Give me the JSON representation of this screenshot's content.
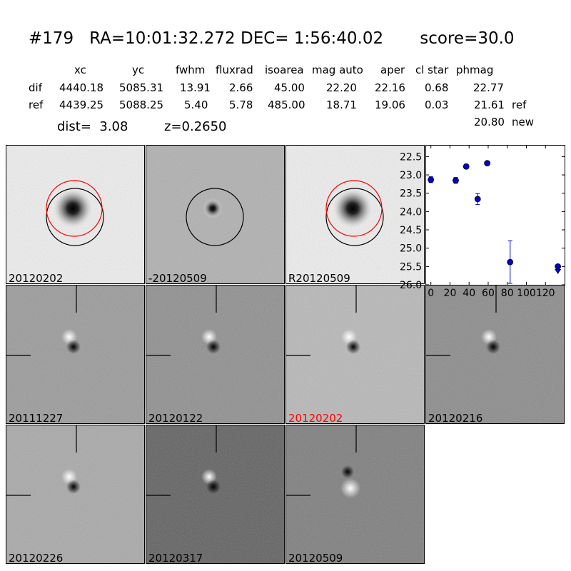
{
  "header": {
    "title": "#179   RA=10:01:32.272 DEC= 1:56:40.02       score=30.0",
    "columns": [
      "xc",
      "yc",
      "fwhm",
      "fluxrad",
      "isoarea",
      "mag auto",
      "aper",
      "cl star",
      "phmag"
    ],
    "rows": [
      {
        "label": "dif",
        "values": [
          "4440.18",
          "5085.31",
          "13.91",
          "2.66",
          "45.00",
          "22.20",
          "22.16",
          "0.68",
          "22.77"
        ],
        "extra": ""
      },
      {
        "label": "ref",
        "values": [
          "4439.25",
          "5088.25",
          "5.40",
          "5.78",
          "485.00",
          "18.71",
          "19.06",
          "0.03",
          "21.61"
        ],
        "extra": "ref"
      }
    ],
    "new_phmag": "20.80",
    "new_label": "new",
    "dist": "dist=  3.08",
    "z": "z=0.2650"
  },
  "panels": [
    {
      "label": "20120202",
      "label_color": "#000000",
      "bg": "#f0f0f0",
      "kind": "galaxy",
      "red_circle": true
    },
    {
      "label": "-20120509",
      "label_color": "#000000",
      "bg": "#b0b0b0",
      "kind": "noisy-galaxy",
      "red_circle": false
    },
    {
      "label": "R20120509",
      "label_color": "#000000",
      "bg": "#f0f0f0",
      "kind": "galaxy",
      "red_circle": true
    },
    {
      "label": "20111227",
      "label_color": "#000000",
      "bg": "#9a9a9a",
      "kind": "dipole"
    },
    {
      "label": "20120122",
      "label_color": "#000000",
      "bg": "#8e8e8e",
      "kind": "dipole"
    },
    {
      "label": "20120202",
      "label_color": "#ff0000",
      "bg": "#b8b8b8",
      "kind": "dipole"
    },
    {
      "label": "20120216",
      "label_color": "#000000",
      "bg": "#8a8a8a",
      "kind": "dipole"
    },
    {
      "label": "20120226",
      "label_color": "#000000",
      "bg": "#a8a8a8",
      "kind": "dipole"
    },
    {
      "label": "20120317",
      "label_color": "#000000",
      "bg": "#5e5e5e",
      "kind": "dipole"
    },
    {
      "label": "20120509",
      "label_color": "#000000",
      "bg": "#7c7c7c",
      "kind": "inverse-dipole"
    }
  ],
  "colors": {
    "marker": "#0000cc",
    "red": "#ff0000"
  },
  "chart_data": {
    "type": "scatter",
    "title": "",
    "xlabel": "",
    "ylabel": "",
    "x": [
      0,
      26,
      37,
      49,
      59,
      83,
      133
    ],
    "y": [
      23.13,
      23.15,
      22.77,
      23.66,
      22.68,
      25.38,
      25.5
    ],
    "yerr": [
      0.08,
      0.08,
      0.06,
      0.15,
      0.05,
      0.58,
      0.0
    ],
    "upper_limit": [
      false,
      false,
      false,
      false,
      false,
      false,
      true
    ],
    "xlim": [
      -5,
      140
    ],
    "ylim": [
      26.0,
      22.2
    ],
    "xticks": [
      "0",
      "20",
      "40",
      "60",
      "80",
      "100",
      "120"
    ],
    "yticks": [
      "22.5",
      "23.0",
      "23.5",
      "24.0",
      "24.5",
      "25.0",
      "25.5",
      "26.0"
    ],
    "inverted_y": true
  }
}
